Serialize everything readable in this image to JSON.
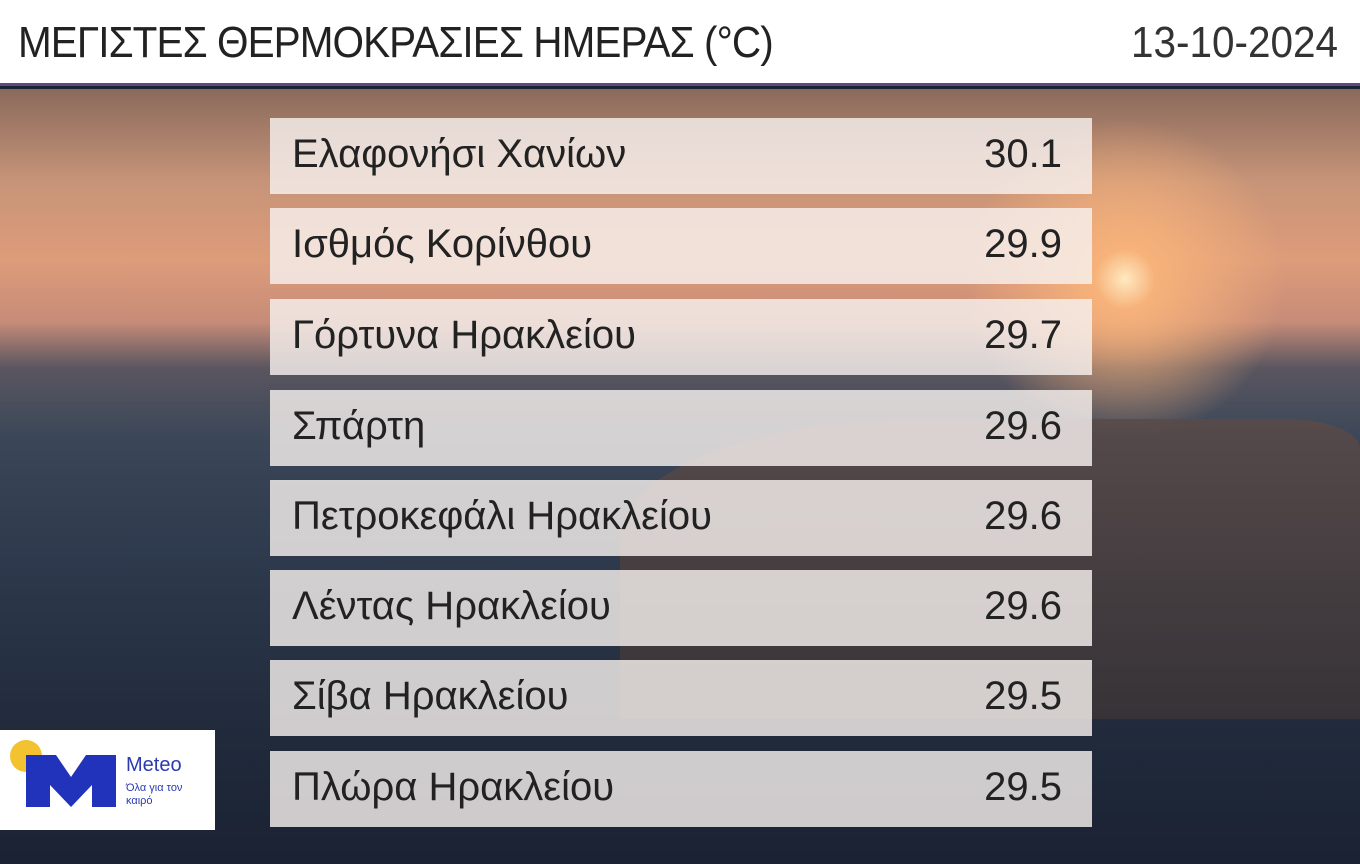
{
  "header": {
    "title": "ΜΕΓΙΣΤΕΣ ΘΕΡΜΟΚΡΑΣΙΕΣ ΗΜΕΡΑΣ (°C)",
    "date": "13-10-2024"
  },
  "rows": [
    {
      "station": "Ελαφονήσι Χανίων",
      "value": "30.1"
    },
    {
      "station": "Ισθμός Κορίνθου",
      "value": "29.9"
    },
    {
      "station": "Γόρτυνα Ηρακλείου",
      "value": "29.7"
    },
    {
      "station": "Σπάρτη",
      "value": "29.6"
    },
    {
      "station": "Πετροκεφάλι Ηρακλείου",
      "value": "29.6"
    },
    {
      "station": "Λέντας Ηρακλείου",
      "value": "29.6"
    },
    {
      "station": "Σίβα Ηρακλείου",
      "value": "29.5"
    },
    {
      "station": "Πλώρα Ηρακλείου",
      "value": "29.5"
    }
  ],
  "logo": {
    "brand": "Meteo",
    "tagline": "Όλα για τον καιρό",
    "colors": {
      "blue": "#2233bb",
      "yellow": "#f2c230"
    }
  },
  "colors": {
    "header_border": "#5b4c86"
  }
}
